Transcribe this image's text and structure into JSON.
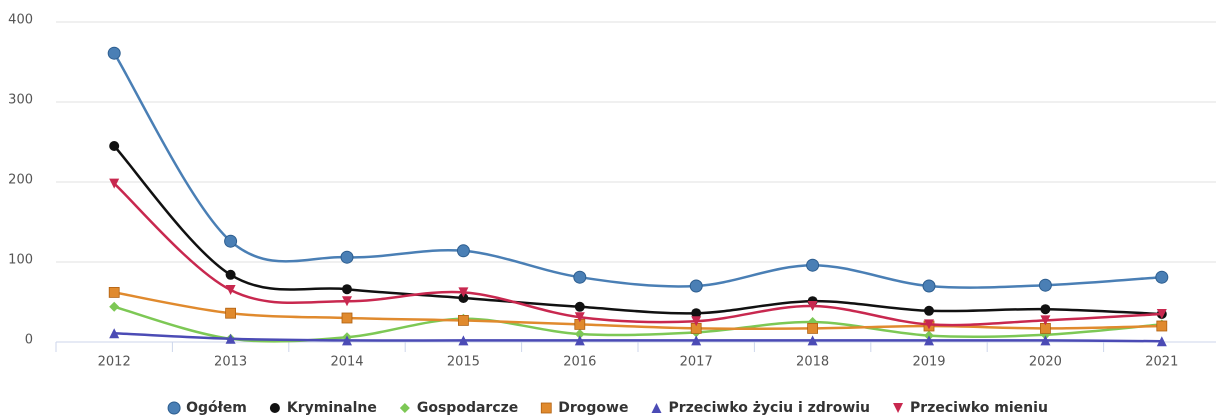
{
  "chart_data": {
    "type": "line",
    "categories": [
      "2012",
      "2013",
      "2014",
      "2015",
      "2016",
      "2017",
      "2018",
      "2019",
      "2020",
      "2021"
    ],
    "ylim": [
      0,
      400
    ],
    "yticks": [
      0,
      100,
      200,
      300,
      400
    ],
    "grid": true,
    "legend": "bottom",
    "smooth": true,
    "series": [
      {
        "name": "Ogółem",
        "color": "#4a7fb5",
        "marker": "circle",
        "values": [
          361,
          126,
          106,
          114,
          81,
          70,
          96,
          70,
          71,
          81
        ]
      },
      {
        "name": "Kryminalne",
        "color": "#111111",
        "marker": "dot",
        "values": [
          245,
          84,
          66,
          55,
          44,
          36,
          51,
          39,
          41,
          35
        ]
      },
      {
        "name": "Gospodarcze",
        "color": "#7dc855",
        "marker": "diamond",
        "values": [
          44,
          4,
          6,
          29,
          10,
          12,
          25,
          8,
          9,
          22
        ]
      },
      {
        "name": "Drogowe",
        "color": "#e08a2e",
        "marker": "square",
        "values": [
          62,
          36,
          30,
          27,
          22,
          17,
          17,
          20,
          17,
          20
        ]
      },
      {
        "name": "Przeciwko życiu i zdrowiu",
        "color": "#4b4bb5",
        "marker": "triangle",
        "values": [
          11,
          4,
          2,
          2,
          2,
          2,
          2,
          2,
          2,
          1
        ]
      },
      {
        "name": "Przeciwko mieniu",
        "color": "#c8284f",
        "marker": "triangle-down",
        "values": [
          198,
          65,
          51,
          62,
          31,
          26,
          45,
          22,
          27,
          35
        ]
      }
    ]
  }
}
